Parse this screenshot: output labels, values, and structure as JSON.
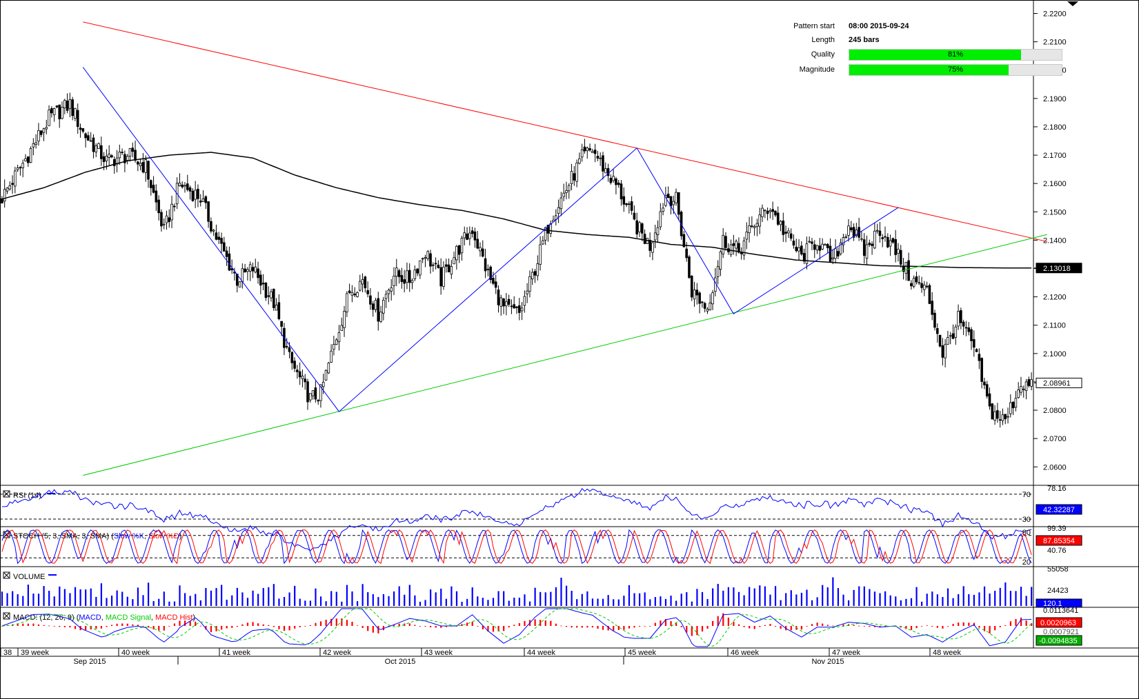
{
  "chart_data": {
    "type": "candlestick",
    "price_axis": {
      "ticks": [
        "2.0600",
        "2.0700",
        "2.0800",
        "2.0900",
        "2.1000",
        "2.1100",
        "2.1200",
        "2.1300",
        "2.1400",
        "2.1500",
        "2.1600",
        "2.1700",
        "2.1800",
        "2.1900",
        "2.2000",
        "2.2100",
        "2.2200"
      ],
      "ylim": [
        2.0535,
        2.2245
      ]
    },
    "week_labels": [
      "38",
      "39 week",
      "40 week",
      "41 week",
      "42 week",
      "43 week",
      "44 week",
      "45 week",
      "46 week",
      "47 week",
      "48 week"
    ],
    "month_labels": [
      "Sep 2015",
      "Oct 2015",
      "Nov 2015"
    ],
    "price_anchors": [
      [
        0,
        2.155
      ],
      [
        8,
        2.167
      ],
      [
        18,
        2.183
      ],
      [
        26,
        2.188
      ],
      [
        31,
        2.178
      ],
      [
        40,
        2.168
      ],
      [
        48,
        2.17
      ],
      [
        55,
        2.166
      ],
      [
        62,
        2.143
      ],
      [
        68,
        2.16
      ],
      [
        76,
        2.155
      ],
      [
        82,
        2.141
      ],
      [
        90,
        2.126
      ],
      [
        96,
        2.13
      ],
      [
        104,
        2.118
      ],
      [
        110,
        2.098
      ],
      [
        118,
        2.084
      ],
      [
        122,
        2.086
      ],
      [
        128,
        2.106
      ],
      [
        133,
        2.122
      ],
      [
        138,
        2.126
      ],
      [
        144,
        2.114
      ],
      [
        150,
        2.128
      ],
      [
        156,
        2.126
      ],
      [
        162,
        2.136
      ],
      [
        168,
        2.126
      ],
      [
        174,
        2.136
      ],
      [
        180,
        2.144
      ],
      [
        186,
        2.128
      ],
      [
        192,
        2.116
      ],
      [
        198,
        2.114
      ],
      [
        204,
        2.13
      ],
      [
        210,
        2.148
      ],
      [
        216,
        2.158
      ],
      [
        222,
        2.169
      ],
      [
        226,
        2.172
      ],
      [
        230,
        2.166
      ],
      [
        236,
        2.158
      ],
      [
        242,
        2.146
      ],
      [
        248,
        2.138
      ],
      [
        254,
        2.156
      ],
      [
        258,
        2.154
      ],
      [
        264,
        2.122
      ],
      [
        270,
        2.116
      ],
      [
        276,
        2.14
      ],
      [
        282,
        2.136
      ],
      [
        288,
        2.146
      ],
      [
        294,
        2.152
      ],
      [
        300,
        2.142
      ],
      [
        306,
        2.134
      ],
      [
        312,
        2.14
      ],
      [
        318,
        2.132
      ],
      [
        324,
        2.146
      ],
      [
        330,
        2.136
      ],
      [
        336,
        2.144
      ],
      [
        342,
        2.136
      ],
      [
        348,
        2.126
      ],
      [
        354,
        2.122
      ],
      [
        360,
        2.1
      ],
      [
        366,
        2.112
      ],
      [
        372,
        2.102
      ],
      [
        378,
        2.08
      ],
      [
        384,
        2.076
      ],
      [
        390,
        2.09
      ],
      [
        394,
        2.088
      ]
    ],
    "ma_anchors": [
      [
        0,
        2.1545
      ],
      [
        16,
        2.1585
      ],
      [
        32,
        2.164
      ],
      [
        48,
        2.168
      ],
      [
        64,
        2.17
      ],
      [
        80,
        2.171
      ],
      [
        96,
        2.169
      ],
      [
        112,
        2.163
      ],
      [
        128,
        2.1585
      ],
      [
        144,
        2.155
      ],
      [
        160,
        2.1525
      ],
      [
        176,
        2.1505
      ],
      [
        192,
        2.1475
      ],
      [
        208,
        2.1435
      ],
      [
        224,
        2.142
      ],
      [
        240,
        2.141
      ],
      [
        256,
        2.1385
      ],
      [
        272,
        2.1375
      ],
      [
        288,
        2.135
      ],
      [
        304,
        2.133
      ],
      [
        320,
        2.132
      ],
      [
        336,
        2.131
      ],
      [
        352,
        2.1307
      ],
      [
        368,
        2.1303
      ],
      [
        384,
        2.1302
      ],
      [
        394,
        2.1302
      ]
    ],
    "zigzag": [
      [
        31,
        2.201
      ],
      [
        129,
        2.0795
      ],
      [
        243,
        2.1725
      ],
      [
        280,
        2.114
      ],
      [
        343,
        2.1515
      ]
    ],
    "resistance_line": [
      [
        31,
        2.217
      ],
      [
        400,
        2.1395
      ]
    ],
    "support_line": [
      [
        31,
        2.057
      ],
      [
        400,
        2.142
      ]
    ],
    "last_price": "2.08961",
    "ma_value": "2.13018",
    "last_bar": 394,
    "total_bars": 395,
    "colors": {
      "bull": "#ffffff",
      "bear": "#000000",
      "resistance": "#ff0000",
      "support": "#00cc00",
      "zigzag": "#0000ff",
      "ma": "#000000",
      "rsi": "#0000ff",
      "stoch_k": "#0000ff",
      "stoch_d": "#ff0000",
      "volume": "#0000ff",
      "macd": "#0000ff",
      "macd_signal": "#00cc00",
      "macd_hist": "#ff0000"
    }
  },
  "info_panel": {
    "pattern_start_label": "Pattern start",
    "pattern_start_value": "08:00 2015-09-24",
    "length_label": "Length",
    "length_value": "245 bars",
    "quality_label": "Quality",
    "quality_value": "81%",
    "quality_fraction": 0.81,
    "magnitude_label": "Magnitude",
    "magnitude_value": "75%",
    "magnitude_fraction": 0.75
  },
  "rsi": {
    "title": "RSI (14)",
    "level_high": "70",
    "level_low": "30",
    "max_label": "78.16",
    "value": "42.32287"
  },
  "stoch": {
    "title_pre": "STOCH (5, 3, SMA, 3, SMA)",
    "k_label": "Slow %K",
    "sep": ",",
    "d_label": "Slow %D",
    "level_high": "80",
    "level_low": "20",
    "max_label": "99.39",
    "value": "87.85354",
    "lower_label": "40.76"
  },
  "volume": {
    "title": "VOLUME",
    "max_label": "55058",
    "mid_label": "24423",
    "value": "120.1"
  },
  "macd": {
    "title_pre": "MACD: (12, 26, 9)",
    "macd_label": "MACD",
    "signal_label": "MACD Signal",
    "hist_label": "MACD Hist",
    "top_label": "0.0113641",
    "value_hist": "0.0020963",
    "value_mid": "0.0007921",
    "value_macd": "-0.0094835"
  }
}
